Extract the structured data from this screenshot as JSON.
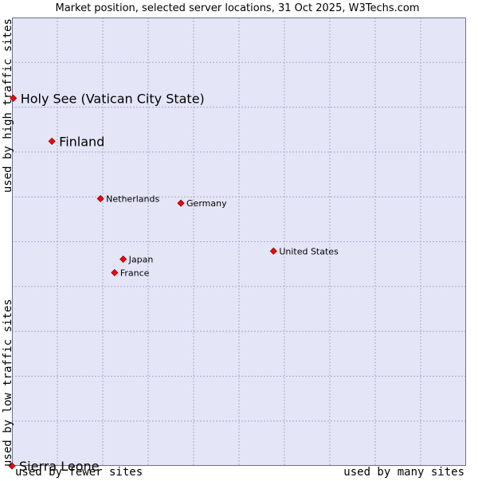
{
  "chart_data": {
    "type": "scatter",
    "title": "Market position, selected server locations, 31 Oct 2025, W3Techs.com",
    "xlabel_left": "used by fewer sites",
    "xlabel_right": "used by many sites",
    "ylabel_top": "used by high traffic sites",
    "ylabel_bottom": "used by low traffic sites",
    "xlim": [
      0,
      10
    ],
    "ylim": [
      0,
      10
    ],
    "grid": true,
    "colors": {
      "plot_background": "#e4e6f8",
      "grid": "#a7a8c8",
      "marker_fill": "#ff0000",
      "marker_stroke": "#8a0000",
      "text": "#000000"
    },
    "points": [
      {
        "name": "Holy See (Vatican City State)",
        "x": 0.03,
        "y": 8.2,
        "emphasis": true
      },
      {
        "name": "Finland",
        "x": 0.88,
        "y": 7.24,
        "emphasis": true
      },
      {
        "name": "Netherlands",
        "x": 1.95,
        "y": 5.96,
        "emphasis": false
      },
      {
        "name": "Germany",
        "x": 3.72,
        "y": 5.86,
        "emphasis": false
      },
      {
        "name": "United States",
        "x": 5.76,
        "y": 4.79,
        "emphasis": false
      },
      {
        "name": "Japan",
        "x": 2.45,
        "y": 4.61,
        "emphasis": false
      },
      {
        "name": "France",
        "x": 2.26,
        "y": 4.31,
        "emphasis": false
      },
      {
        "name": "Sierra Leone",
        "x": 0.0,
        "y": 0.0,
        "emphasis": true
      }
    ]
  }
}
